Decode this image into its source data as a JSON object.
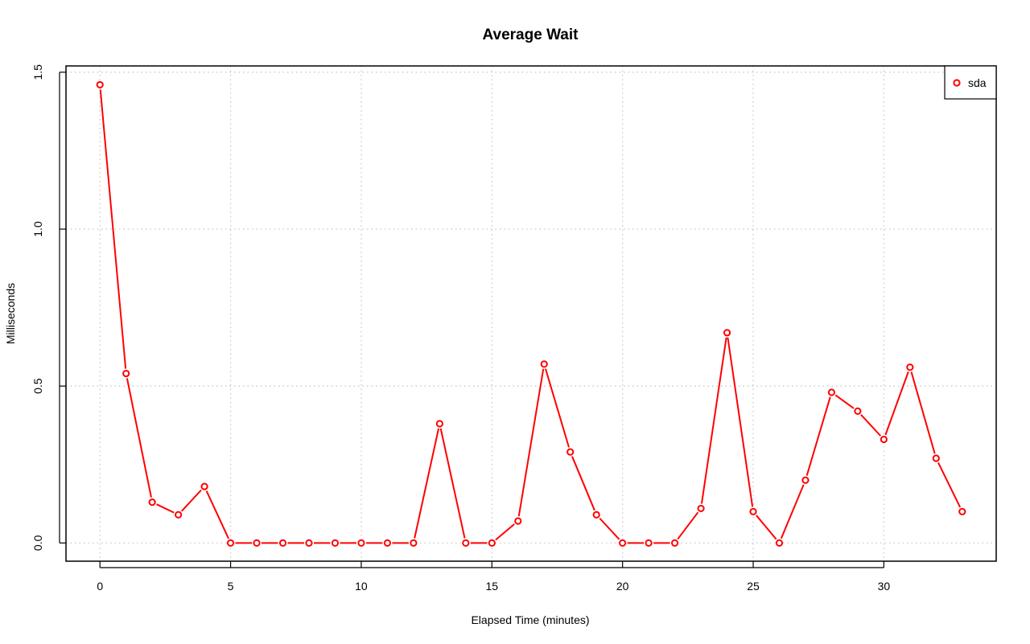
{
  "chart_data": {
    "type": "line",
    "title": "Average Wait",
    "xlabel": "Elapsed Time (minutes)",
    "ylabel": "Milliseconds",
    "xlim": [
      -1.3,
      34.3
    ],
    "ylim": [
      -0.058,
      1.52
    ],
    "xticks": [
      0,
      5,
      10,
      15,
      20,
      25,
      30
    ],
    "yticks": [
      0.0,
      0.5,
      1.0,
      1.5
    ],
    "xtick_labels": [
      "0",
      "5",
      "10",
      "15",
      "20",
      "25",
      "30"
    ],
    "ytick_labels": [
      "0.0",
      "0.5",
      "1.0",
      "1.5"
    ],
    "grid": true,
    "legend_position": "top-right",
    "series": [
      {
        "name": "sda",
        "color": "#ff0000",
        "marker": "circle-open",
        "x": [
          0,
          1,
          2,
          3,
          4,
          5,
          6,
          7,
          8,
          9,
          10,
          11,
          12,
          13,
          14,
          15,
          16,
          17,
          18,
          19,
          20,
          21,
          22,
          23,
          24,
          25,
          26,
          27,
          28,
          29,
          30,
          31,
          32,
          33
        ],
        "y": [
          1.46,
          0.54,
          0.13,
          0.09,
          0.18,
          0.0,
          0.0,
          0.0,
          0.0,
          0.0,
          0.0,
          0.0,
          0.0,
          0.38,
          0.0,
          0.0,
          0.07,
          0.57,
          0.29,
          0.09,
          0.0,
          0.0,
          0.0,
          0.11,
          0.67,
          0.1,
          0.0,
          0.2,
          0.48,
          0.42,
          0.33,
          0.56,
          0.27,
          0.1
        ]
      }
    ]
  }
}
